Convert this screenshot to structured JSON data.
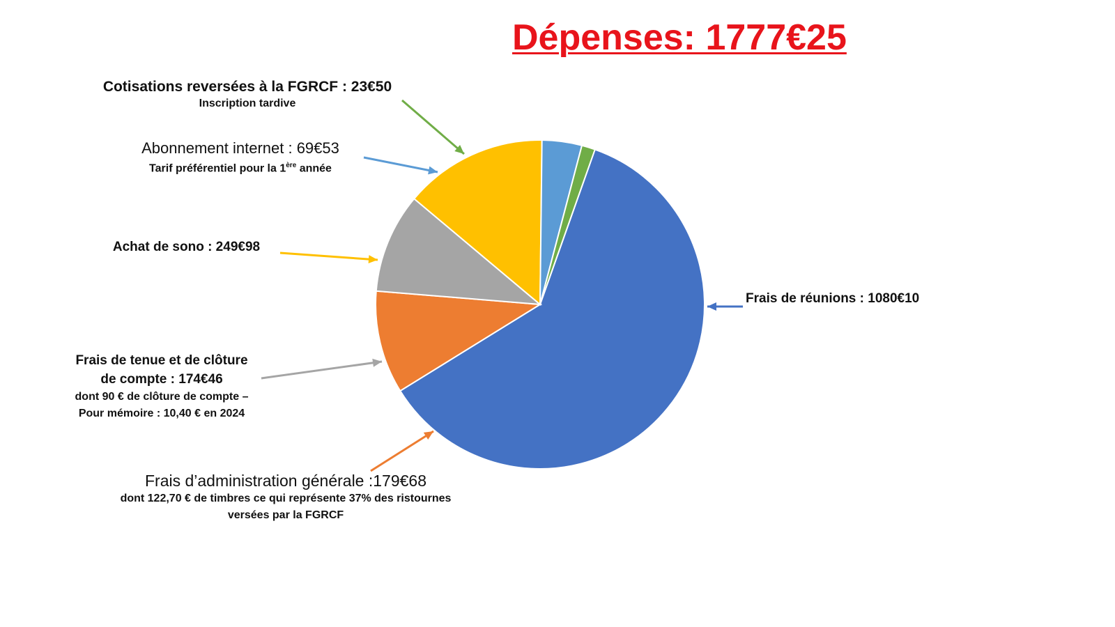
{
  "chart_data": {
    "type": "pie",
    "title": "Dépenses: 1777€25",
    "slices": [
      {
        "key": "reunions",
        "label": "Frais de réunions : 1080€10",
        "value": 1080.1,
        "color": "#4472c4"
      },
      {
        "key": "admin",
        "label": "Frais d’administration générale :179€68",
        "value": 179.68,
        "color": "#ed7d31",
        "notes": [
          "dont 122,70 € de timbres ce qui représente 37% des ristournes",
          "versées par la FGRCF"
        ]
      },
      {
        "key": "tenue",
        "label_lines": [
          "Frais de tenue et de clôture",
          "de compte : 174€46"
        ],
        "value": 174.46,
        "color": "#a5a5a5",
        "notes": [
          "dont 90 € de clôture de compte –",
          "Pour mémoire : 10,40 € en 2024"
        ]
      },
      {
        "key": "sono",
        "label": "Achat de sono : 249€98",
        "value": 249.98,
        "color": "#ffc000"
      },
      {
        "key": "abonnement",
        "label": "Abonnement internet : 69€53",
        "value": 69.53,
        "color": "#5b9bd5",
        "note_parts": [
          "Tarif préférentiel pour la 1",
          "ère",
          " année"
        ]
      },
      {
        "key": "cotisations",
        "label": "Cotisations reversées à la FGRCF : 23€50",
        "value": 23.5,
        "color": "#70ad47",
        "notes": [
          "Inscription tardive"
        ]
      }
    ],
    "legend": "none"
  }
}
